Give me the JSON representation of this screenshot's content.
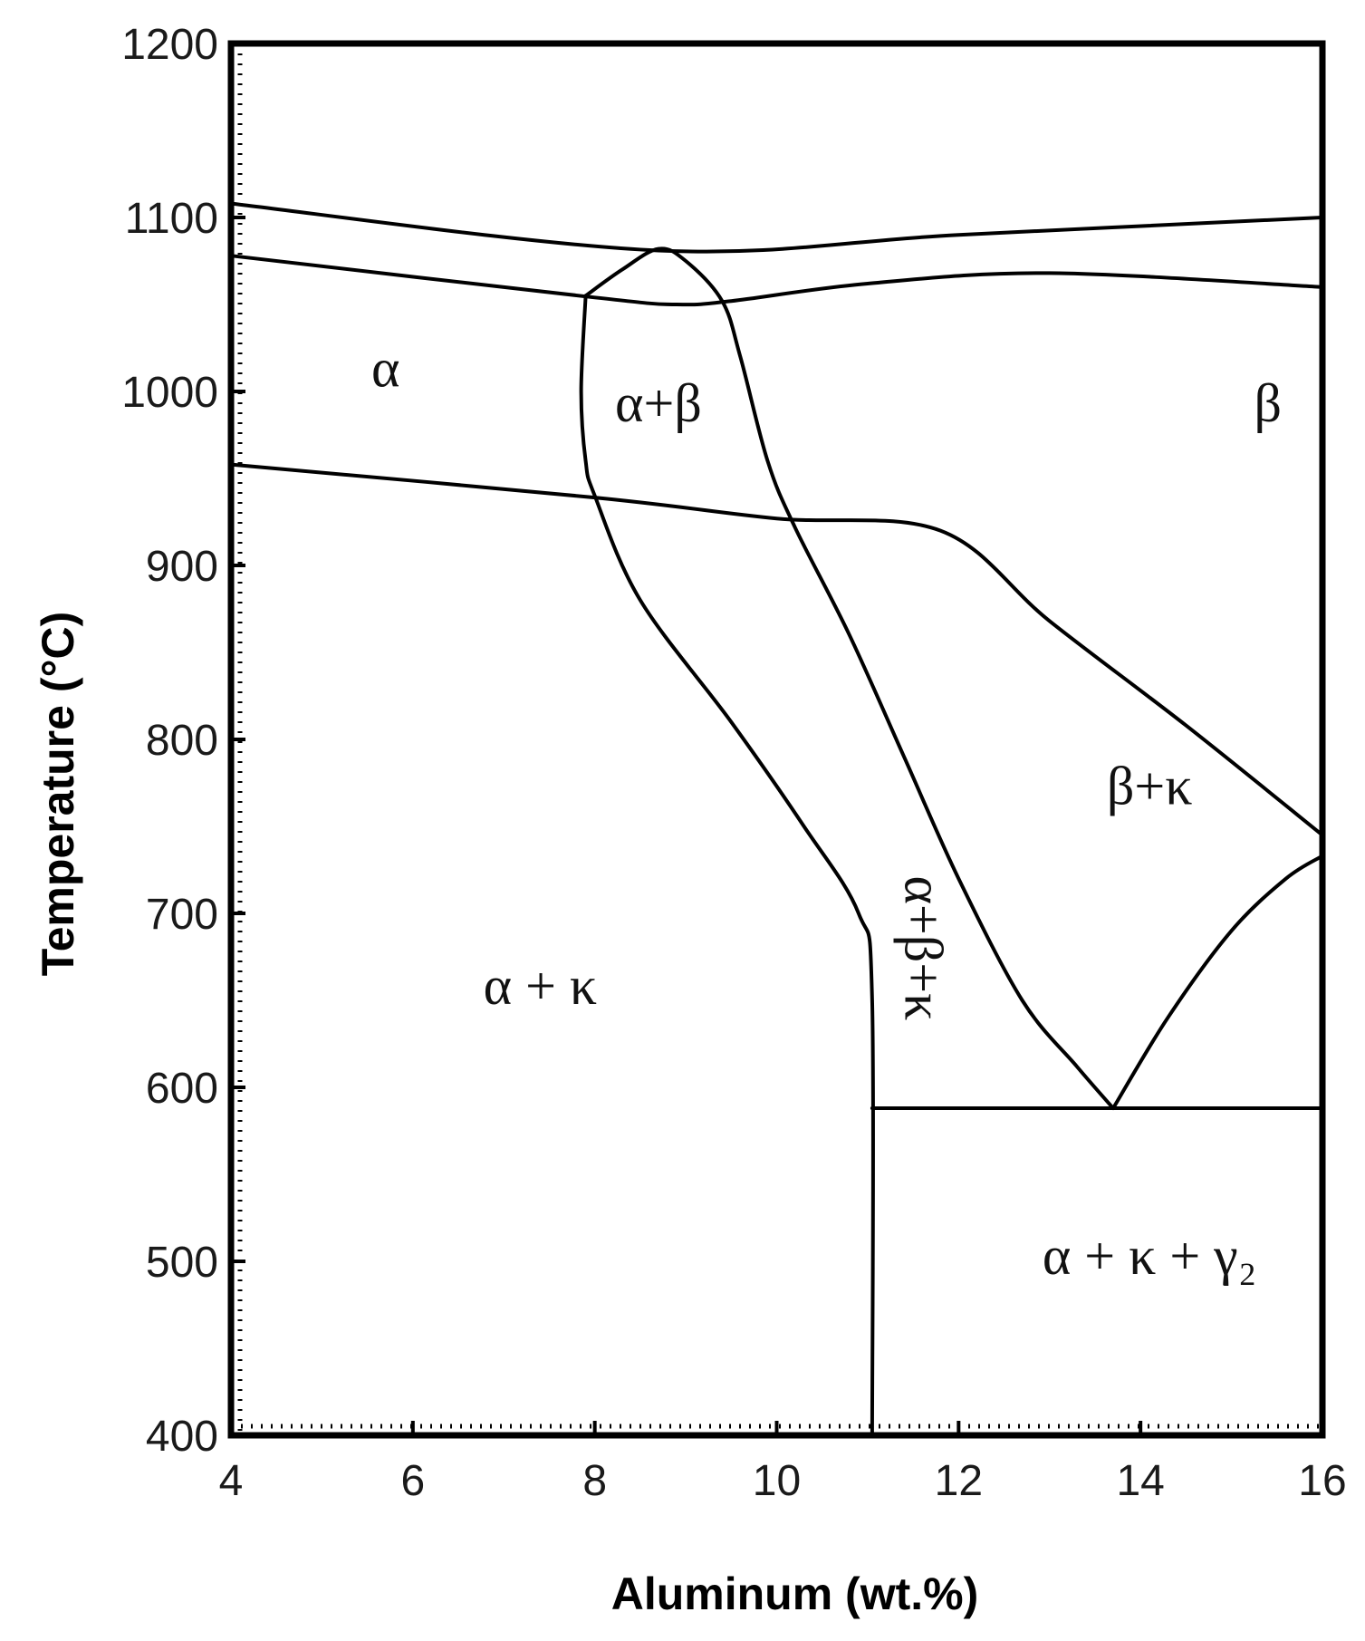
{
  "chart_data": {
    "type": "line",
    "title": "",
    "xlabel": "Aluminum (wt.%)",
    "ylabel": "Temperature (°C)",
    "xlim": [
      4,
      16
    ],
    "ylim": [
      400,
      1200
    ],
    "xticks": [
      4,
      6,
      8,
      10,
      12,
      14,
      16
    ],
    "yticks": [
      400,
      500,
      600,
      700,
      800,
      900,
      1000,
      1100,
      1200
    ],
    "grid": false,
    "legend": "none",
    "boundaries": [
      {
        "id": "liquidus",
        "points": [
          [
            4,
            1108
          ],
          [
            8.7,
            1081
          ],
          [
            12,
            1090
          ],
          [
            16,
            1100
          ]
        ]
      },
      {
        "id": "solidus",
        "points": [
          [
            4,
            1078
          ],
          [
            8,
            1054
          ],
          [
            8.9,
            1050
          ],
          [
            9.5,
            1052
          ],
          [
            11,
            1062
          ],
          [
            13,
            1068
          ],
          [
            16,
            1060
          ]
        ]
      },
      {
        "id": "beta-loop",
        "points": [
          [
            7.9,
            1055
          ],
          [
            8.3,
            1070
          ],
          [
            8.7,
            1082
          ],
          [
            9.0,
            1075
          ],
          [
            9.4,
            1052
          ],
          [
            9.6,
            1020
          ],
          [
            9.9,
            960
          ],
          [
            10.2,
            922
          ],
          [
            10.8,
            860
          ],
          [
            11.4,
            790
          ],
          [
            12.0,
            720
          ],
          [
            12.7,
            650
          ],
          [
            13.3,
            612
          ],
          [
            13.7,
            588
          ]
        ]
      },
      {
        "id": "alpha-boundary",
        "points": [
          [
            7.9,
            1055
          ],
          [
            7.85,
            1000
          ],
          [
            7.9,
            960
          ],
          [
            8.0,
            940
          ],
          [
            8.5,
            880
          ],
          [
            9.5,
            810
          ],
          [
            10.3,
            750
          ],
          [
            10.9,
            700
          ],
          [
            11.05,
            650
          ],
          [
            11.05,
            400
          ]
        ]
      },
      {
        "id": "kappa-solvus",
        "points": [
          [
            4,
            958
          ],
          [
            8,
            939
          ],
          [
            10,
            927
          ],
          [
            11.8,
            920
          ],
          [
            13,
            868
          ],
          [
            14.5,
            808
          ],
          [
            16,
            745
          ]
        ]
      },
      {
        "id": "gamma2-solvus",
        "points": [
          [
            13.7,
            588
          ],
          [
            14.3,
            640
          ],
          [
            15.0,
            690
          ],
          [
            15.6,
            720
          ],
          [
            16,
            733
          ]
        ]
      },
      {
        "id": "eutectoid",
        "points": [
          [
            11.05,
            588
          ],
          [
            16,
            588
          ]
        ]
      }
    ],
    "annotations": [
      {
        "text": "α",
        "x": 5.7,
        "y": 1010,
        "rotate": 0
      },
      {
        "text": "α+β",
        "x": 8.7,
        "y": 990,
        "rotate": 0
      },
      {
        "text": "β",
        "x": 15.4,
        "y": 990,
        "rotate": 0
      },
      {
        "text": "β+κ",
        "x": 14.1,
        "y": 770,
        "rotate": 0
      },
      {
        "text": "α+β+κ",
        "x": 11.55,
        "y": 680,
        "rotate": 90
      },
      {
        "text": "α + κ",
        "x": 7.4,
        "y": 655,
        "rotate": 0
      },
      {
        "text": "α + κ + γ₂",
        "x": 14.1,
        "y": 500,
        "rotate": 0
      }
    ]
  }
}
